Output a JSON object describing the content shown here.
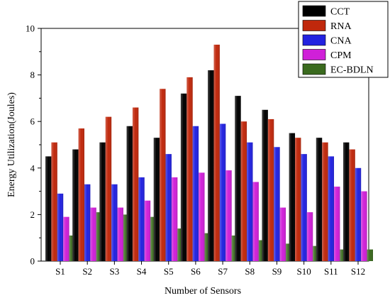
{
  "chart_data": {
    "type": "bar",
    "title": "",
    "xlabel": "Number of Sensors",
    "ylabel": "Energy Utilization(Joules)",
    "ylim": [
      0,
      10
    ],
    "yticks": [
      0,
      2,
      4,
      6,
      8,
      10
    ],
    "grid": false,
    "legend_position": "top-right",
    "categories": [
      "S1",
      "S2",
      "S3",
      "S4",
      "S5",
      "S6",
      "S7",
      "S8",
      "S9",
      "S10",
      "S11",
      "S12"
    ],
    "series": [
      {
        "name": "CCT",
        "color": "#000000",
        "values": [
          4.5,
          4.8,
          5.1,
          5.8,
          5.3,
          7.2,
          8.2,
          7.1,
          6.5,
          5.5,
          5.3,
          5.1
        ]
      },
      {
        "name": "RNA",
        "color": "#c0280c",
        "values": [
          5.1,
          5.7,
          6.2,
          6.6,
          7.4,
          7.9,
          9.3,
          6.0,
          6.1,
          5.3,
          5.1,
          4.8
        ]
      },
      {
        "name": "CNA",
        "color": "#2222e0",
        "values": [
          2.9,
          3.3,
          3.3,
          3.6,
          4.6,
          5.8,
          5.9,
          5.1,
          4.9,
          4.6,
          4.5,
          4.0
        ]
      },
      {
        "name": "CPM",
        "color": "#d020d8",
        "values": [
          1.9,
          2.3,
          2.3,
          2.6,
          3.6,
          3.8,
          3.9,
          3.4,
          2.3,
          2.1,
          3.2,
          3.0
        ]
      },
      {
        "name": "EC-BDLN",
        "color": "#3a6a1e",
        "values": [
          1.1,
          2.1,
          2.0,
          1.9,
          1.4,
          1.2,
          1.1,
          0.9,
          0.75,
          0.65,
          0.5,
          0.5
        ]
      }
    ]
  }
}
